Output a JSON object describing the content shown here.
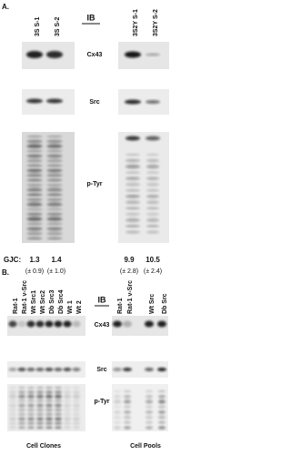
{
  "panel_a": {
    "label": "A.",
    "ib": "IB",
    "lanes_left": [
      "3S S-1",
      "3S S-2"
    ],
    "lanes_right": [
      "3S2Y S-1",
      "3S2Y S-2"
    ],
    "rows": [
      "Cx43",
      "Src",
      "p-Tyr"
    ],
    "gjc": {
      "label": "GJC:",
      "means": [
        1.3,
        1.4,
        9.9,
        10.5
      ],
      "errors": [
        "(± 0.9)",
        "(± 1.0)",
        "(± 2.8)",
        "(± 2.4)"
      ]
    }
  },
  "panel_b": {
    "label": "B.",
    "ib": "IB",
    "lanes_left": [
      "Rat-1",
      "Rat-1 v-Src",
      "Wt Src1",
      "Wt Src2",
      "Db Src3",
      "Db Src4",
      "Wt 1",
      "Wt 2"
    ],
    "lanes_right": [
      "Rat-1",
      "Rat-1 v-Src",
      "Wt Src",
      "Db Src"
    ],
    "rows": [
      "Cx43",
      "Src",
      "p-Tyr"
    ],
    "groups": [
      "Cell Clones",
      "Cell Pools"
    ]
  }
}
